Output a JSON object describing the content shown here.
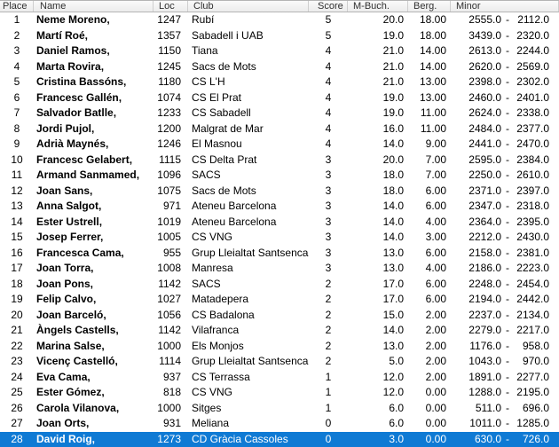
{
  "colors": {
    "selection_blue": "#0f7ad4",
    "header_background": "#f0f0f0",
    "header_border": "#b4b4b4",
    "row_text": "#000000",
    "selected_row_text": "#ffffff"
  },
  "table": {
    "headers": [
      "Place",
      "Name",
      "Loc",
      "Club",
      "Score",
      "M-Buch.",
      "Berg.",
      "Minor"
    ],
    "rows": [
      {
        "place": "1",
        "name": "Neme Moreno,",
        "loc": "1247",
        "club": "Rubí",
        "score": "5",
        "m_buch": "20.0",
        "berg": "18.00",
        "minor_left": "2555.0",
        "minor_sep": "-",
        "minor_right": "2112.0",
        "selected": false
      },
      {
        "place": "2",
        "name": "Martí Roé,",
        "loc": "1357",
        "club": "Sabadell i UAB",
        "score": "5",
        "m_buch": "19.0",
        "berg": "18.00",
        "minor_left": "3439.0",
        "minor_sep": "-",
        "minor_right": "2320.0",
        "selected": false
      },
      {
        "place": "3",
        "name": "Daniel Ramos,",
        "loc": "1150",
        "club": "Tiana",
        "score": "4",
        "m_buch": "21.0",
        "berg": "14.00",
        "minor_left": "2613.0",
        "minor_sep": "-",
        "minor_right": "2244.0",
        "selected": false
      },
      {
        "place": "4",
        "name": "Marta Rovira,",
        "loc": "1245",
        "club": "Sacs de Mots",
        "score": "4",
        "m_buch": "21.0",
        "berg": "14.00",
        "minor_left": "2620.0",
        "minor_sep": "-",
        "minor_right": "2569.0",
        "selected": false
      },
      {
        "place": "5",
        "name": "Cristina Bassóns,",
        "loc": "1180",
        "club": "CS L'H",
        "score": "4",
        "m_buch": "21.0",
        "berg": "13.00",
        "minor_left": "2398.0",
        "minor_sep": "-",
        "minor_right": "2302.0",
        "selected": false
      },
      {
        "place": "6",
        "name": "Francesc Gallén,",
        "loc": "1074",
        "club": "CS El Prat",
        "score": "4",
        "m_buch": "19.0",
        "berg": "13.00",
        "minor_left": "2460.0",
        "minor_sep": "-",
        "minor_right": "2401.0",
        "selected": false
      },
      {
        "place": "7",
        "name": "Salvador Batlle,",
        "loc": "1233",
        "club": "CS Sabadell",
        "score": "4",
        "m_buch": "19.0",
        "berg": "11.00",
        "minor_left": "2624.0",
        "minor_sep": "-",
        "minor_right": "2338.0",
        "selected": false
      },
      {
        "place": "8",
        "name": "Jordi Pujol,",
        "loc": "1200",
        "club": "Malgrat de Mar",
        "score": "4",
        "m_buch": "16.0",
        "berg": "11.00",
        "minor_left": "2484.0",
        "minor_sep": "-",
        "minor_right": "2377.0",
        "selected": false
      },
      {
        "place": "9",
        "name": "Adrià Maynés,",
        "loc": "1246",
        "club": "El Masnou",
        "score": "4",
        "m_buch": "14.0",
        "berg": "9.00",
        "minor_left": "2441.0",
        "minor_sep": "-",
        "minor_right": "2470.0",
        "selected": false
      },
      {
        "place": "10",
        "name": "Francesc Gelabert,",
        "loc": "1115",
        "club": "CS Delta Prat",
        "score": "3",
        "m_buch": "20.0",
        "berg": "7.00",
        "minor_left": "2595.0",
        "minor_sep": "-",
        "minor_right": "2384.0",
        "selected": false
      },
      {
        "place": "11",
        "name": "Armand Sanmamed,",
        "loc": "1096",
        "club": "SACS",
        "score": "3",
        "m_buch": "18.0",
        "berg": "7.00",
        "minor_left": "2250.0",
        "minor_sep": "-",
        "minor_right": "2610.0",
        "selected": false
      },
      {
        "place": "12",
        "name": "Joan Sans,",
        "loc": "1075",
        "club": "Sacs de Mots",
        "score": "3",
        "m_buch": "18.0",
        "berg": "6.00",
        "minor_left": "2371.0",
        "minor_sep": "-",
        "minor_right": "2397.0",
        "selected": false
      },
      {
        "place": "13",
        "name": "Anna Salgot,",
        "loc": "971",
        "club": "Ateneu Barcelona",
        "score": "3",
        "m_buch": "14.0",
        "berg": "6.00",
        "minor_left": "2347.0",
        "minor_sep": "-",
        "minor_right": "2318.0",
        "selected": false
      },
      {
        "place": "14",
        "name": "Ester Ustrell,",
        "loc": "1019",
        "club": "Ateneu Barcelona",
        "score": "3",
        "m_buch": "14.0",
        "berg": "4.00",
        "minor_left": "2364.0",
        "minor_sep": "-",
        "minor_right": "2395.0",
        "selected": false
      },
      {
        "place": "15",
        "name": "Josep Ferrer,",
        "loc": "1005",
        "club": "CS VNG",
        "score": "3",
        "m_buch": "14.0",
        "berg": "3.00",
        "minor_left": "2212.0",
        "minor_sep": "-",
        "minor_right": "2430.0",
        "selected": false
      },
      {
        "place": "16",
        "name": "Francesca Cama,",
        "loc": "955",
        "club": "Grup Lleialtat Santsenca",
        "score": "3",
        "m_buch": "13.0",
        "berg": "6.00",
        "minor_left": "2158.0",
        "minor_sep": "-",
        "minor_right": "2381.0",
        "selected": false
      },
      {
        "place": "17",
        "name": "Joan Torra,",
        "loc": "1008",
        "club": "Manresa",
        "score": "3",
        "m_buch": "13.0",
        "berg": "4.00",
        "minor_left": "2186.0",
        "minor_sep": "-",
        "minor_right": "2223.0",
        "selected": false
      },
      {
        "place": "18",
        "name": "Joan Pons,",
        "loc": "1142",
        "club": "SACS",
        "score": "2",
        "m_buch": "17.0",
        "berg": "6.00",
        "minor_left": "2248.0",
        "minor_sep": "-",
        "minor_right": "2454.0",
        "selected": false
      },
      {
        "place": "19",
        "name": "Felip Calvo,",
        "loc": "1027",
        "club": "Matadepera",
        "score": "2",
        "m_buch": "17.0",
        "berg": "6.00",
        "minor_left": "2194.0",
        "minor_sep": "-",
        "minor_right": "2442.0",
        "selected": false
      },
      {
        "place": "20",
        "name": "Joan Barceló,",
        "loc": "1056",
        "club": "CS Badalona",
        "score": "2",
        "m_buch": "15.0",
        "berg": "2.00",
        "minor_left": "2237.0",
        "minor_sep": "-",
        "minor_right": "2134.0",
        "selected": false
      },
      {
        "place": "21",
        "name": "Àngels Castells,",
        "loc": "1142",
        "club": "Vilafranca",
        "score": "2",
        "m_buch": "14.0",
        "berg": "2.00",
        "minor_left": "2279.0",
        "minor_sep": "-",
        "minor_right": "2217.0",
        "selected": false
      },
      {
        "place": "22",
        "name": "Marina Salse,",
        "loc": "1000",
        "club": "Els Monjos",
        "score": "2",
        "m_buch": "13.0",
        "berg": "2.00",
        "minor_left": "1176.0",
        "minor_sep": "-",
        "minor_right": "958.0",
        "selected": false
      },
      {
        "place": "23",
        "name": "Vicenç Castelló,",
        "loc": "1114",
        "club": "Grup Lleialtat Santsenca",
        "score": "2",
        "m_buch": "5.0",
        "berg": "2.00",
        "minor_left": "1043.0",
        "minor_sep": "-",
        "minor_right": "970.0",
        "selected": false
      },
      {
        "place": "24",
        "name": "Eva Cama,",
        "loc": "937",
        "club": "CS Terrassa",
        "score": "1",
        "m_buch": "12.0",
        "berg": "2.00",
        "minor_left": "1891.0",
        "minor_sep": "-",
        "minor_right": "2277.0",
        "selected": false
      },
      {
        "place": "25",
        "name": "Ester Gómez,",
        "loc": "818",
        "club": "CS VNG",
        "score": "1",
        "m_buch": "12.0",
        "berg": "0.00",
        "minor_left": "1288.0",
        "minor_sep": "-",
        "minor_right": "2195.0",
        "selected": false
      },
      {
        "place": "26",
        "name": "Carola Vilanova,",
        "loc": "1000",
        "club": "Sitges",
        "score": "1",
        "m_buch": "6.0",
        "berg": "0.00",
        "minor_left": "511.0",
        "minor_sep": "-",
        "minor_right": "696.0",
        "selected": false
      },
      {
        "place": "27",
        "name": "Joan Orts,",
        "loc": "931",
        "club": "Meliana",
        "score": "0",
        "m_buch": "6.0",
        "berg": "0.00",
        "minor_left": "1011.0",
        "minor_sep": "-",
        "minor_right": "1285.0",
        "selected": false
      },
      {
        "place": "28",
        "name": "David Roig,",
        "loc": "1273",
        "club": "CD Gràcia Cassoles",
        "score": "0",
        "m_buch": "3.0",
        "berg": "0.00",
        "minor_left": "630.0",
        "minor_sep": "-",
        "minor_right": "726.0",
        "selected": true
      }
    ]
  }
}
